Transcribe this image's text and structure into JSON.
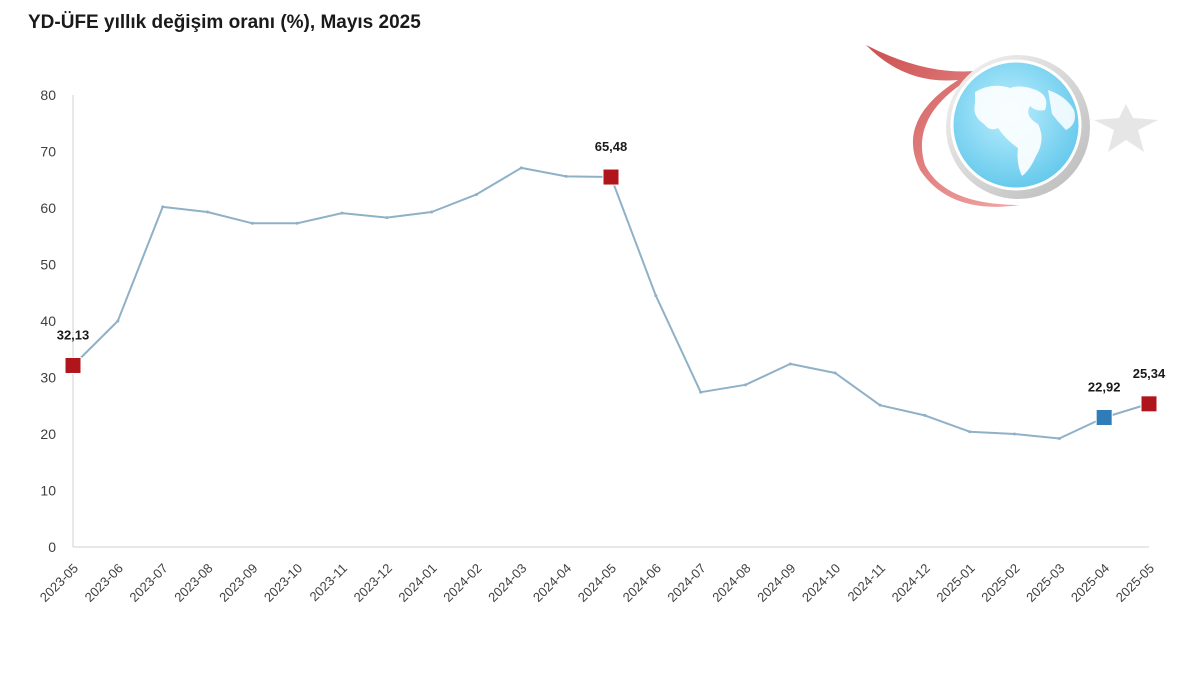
{
  "chart_data": {
    "type": "line",
    "title": "YD-ÜFE yıllık değişim oranı (%), Mayıs 2025",
    "xlabel": "",
    "ylabel": "",
    "ylim": [
      0,
      80
    ],
    "yticks": [
      "0",
      "10",
      "20",
      "30",
      "40",
      "50",
      "60",
      "70",
      "80"
    ],
    "grid": false,
    "legend": "none",
    "line_color": "#8fb1c8",
    "categories": [
      "2023-05",
      "2023-06",
      "2023-07",
      "2023-08",
      "2023-09",
      "2023-10",
      "2023-11",
      "2023-12",
      "2024-01",
      "2024-02",
      "2024-03",
      "2024-04",
      "2024-05",
      "2024-06",
      "2024-07",
      "2024-08",
      "2024-09",
      "2024-10",
      "2024-11",
      "2024-12",
      "2025-01",
      "2025-02",
      "2025-03",
      "2025-04",
      "2025-05"
    ],
    "series": [
      {
        "values": [
          32.13,
          40.0,
          60.2,
          59.3,
          57.3,
          57.3,
          59.1,
          58.3,
          59.3,
          62.4,
          67.1,
          65.6,
          65.48,
          44.5,
          27.4,
          28.7,
          32.4,
          30.8,
          25.1,
          23.3,
          20.4,
          20.0,
          19.2,
          22.92,
          25.34
        ]
      }
    ],
    "markers": [
      {
        "index": 0,
        "label": "32,13",
        "color": "#b0151c"
      },
      {
        "index": 12,
        "label": "65,48",
        "color": "#b0151c"
      },
      {
        "index": 23,
        "label": "22,92",
        "color": "#2e7cb8"
      },
      {
        "index": 24,
        "label": "25,34",
        "color": "#b0151c"
      }
    ]
  },
  "logo": {
    "name": "crescent-star-globe-logo",
    "crescent_color": "#e8686a",
    "globe_color": "#8fd8f2",
    "land_color": "#ffffff",
    "star_color": "#e6e6e6"
  }
}
